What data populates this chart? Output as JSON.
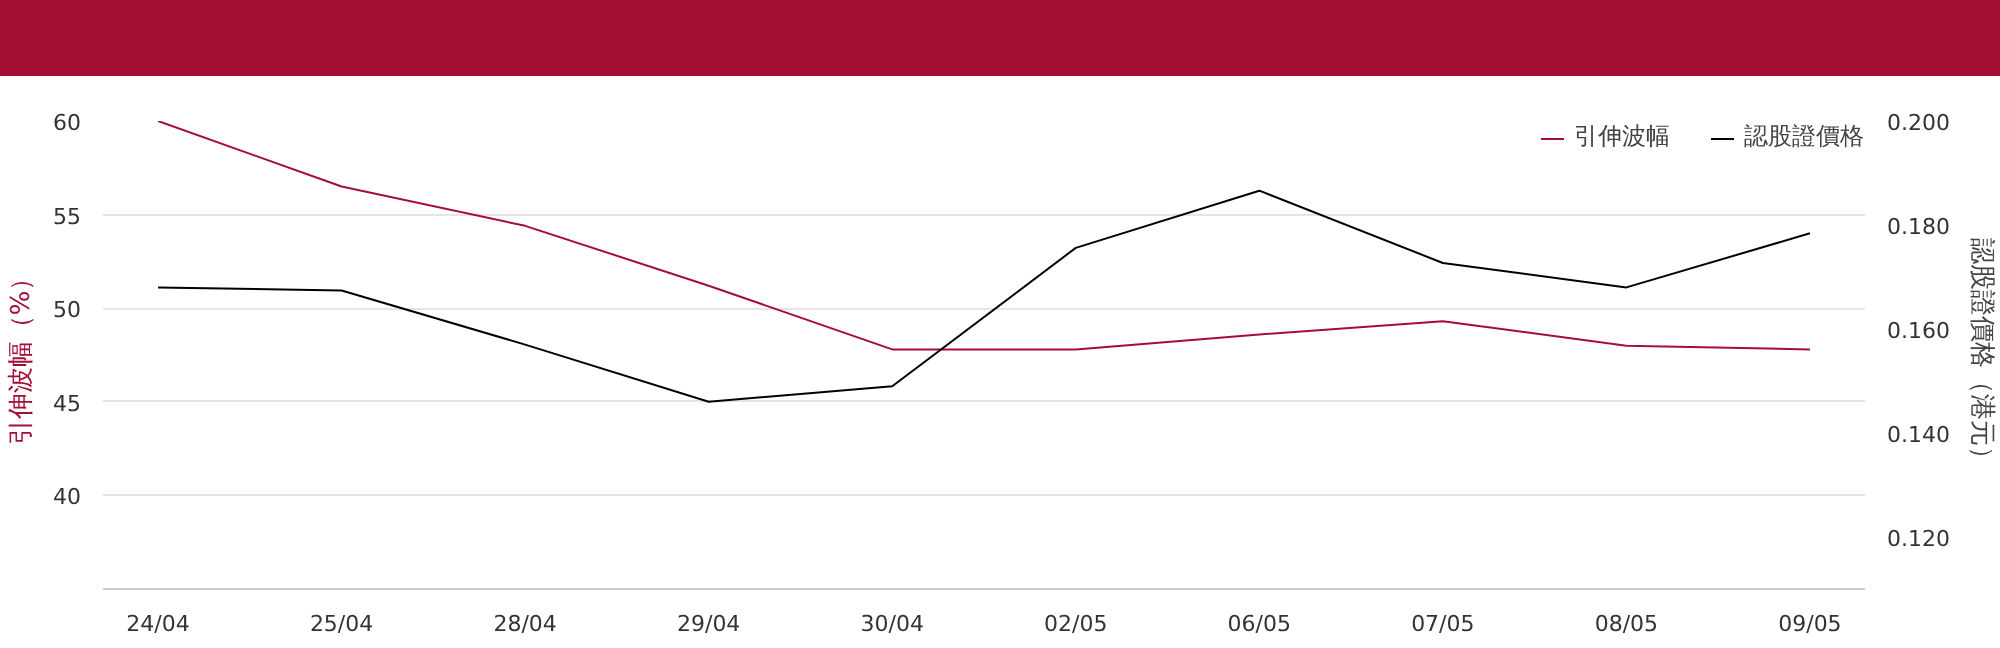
{
  "chart_data": {
    "type": "line",
    "categories": [
      "24/04",
      "25/04",
      "28/04",
      "29/04",
      "30/04",
      "02/05",
      "06/05",
      "07/05",
      "08/05",
      "09/05"
    ],
    "series": [
      {
        "name": "引伸波幅",
        "color": "#a50e34",
        "values": [
          60,
          56.5,
          54.4,
          51.2,
          47.8,
          47.8,
          48.6,
          49.3,
          48.0,
          47.8
        ]
      },
      {
        "name": "認股證價格",
        "color": "#000000",
        "axis": "y2",
        "values": [
          0.168,
          0.1674,
          0.157,
          0.146,
          0.149,
          0.1756,
          0.1866,
          0.1727,
          0.168,
          0.1784
        ]
      }
    ],
    "ylabel": "引伸波幅（%）",
    "y2label": "認股證價格（港元）",
    "ylim": [
      35,
      60
    ],
    "yticks": [
      40,
      45,
      50,
      55,
      60
    ],
    "y2lim": [
      0.11,
      0.2
    ],
    "y2ticks": [
      {
        "value": 0.12,
        "label": "0.120"
      },
      {
        "value": 0.14,
        "label": "0.140"
      },
      {
        "value": 0.16,
        "label": "0.160"
      },
      {
        "value": 0.18,
        "label": "0.180"
      },
      {
        "value": 0.2,
        "label": "0.200"
      }
    ],
    "grid": "y",
    "legend": "top right",
    "marker": "none",
    "line_style": "solid"
  }
}
